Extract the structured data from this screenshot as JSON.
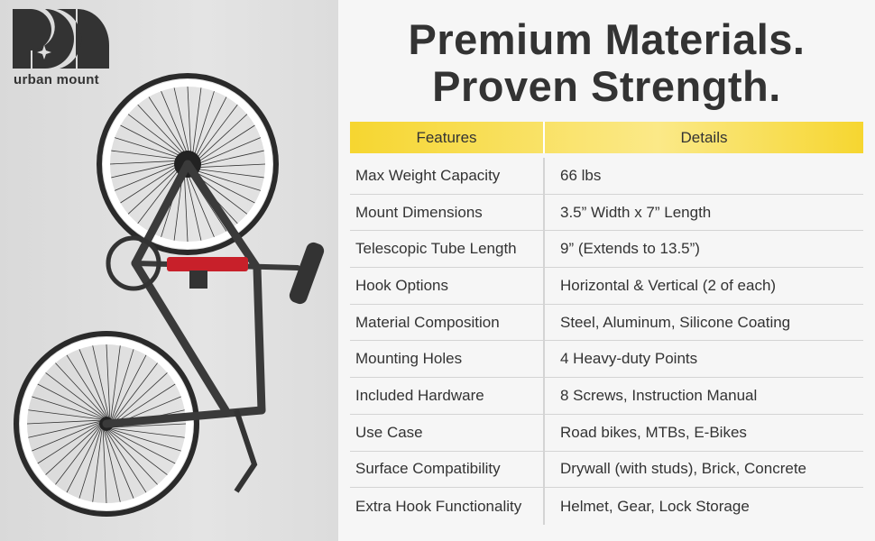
{
  "brand": {
    "name": "urban mount"
  },
  "title": {
    "line1": "Premium Materials.",
    "line2": "Proven Strength."
  },
  "table": {
    "headers": [
      "Features",
      "Details"
    ],
    "rows": [
      [
        "Max Weight Capacity",
        "66 lbs"
      ],
      [
        "Mount Dimensions",
        "3.5” Width x 7” Length"
      ],
      [
        "Telescopic Tube Length",
        "9” (Extends to 13.5”)"
      ],
      [
        "Hook Options",
        "Horizontal & Vertical (2 of each)"
      ],
      [
        "Material Composition",
        "Steel, Aluminum, Silicone Coating"
      ],
      [
        "Mounting Holes",
        "4 Heavy-duty Points"
      ],
      [
        "Included Hardware",
        "8 Screws, Instruction Manual"
      ],
      [
        "Use Case",
        "Road bikes, MTBs, E-Bikes"
      ],
      [
        "Surface Compatibility",
        "Drywall (with studs), Brick, Concrete"
      ],
      [
        "Extra Hook Functionality",
        "Helmet, Gear, Lock Storage"
      ]
    ]
  },
  "colors": {
    "header_yellow": "#f6d630",
    "text": "#333333",
    "mount_red": "#c8202a"
  }
}
